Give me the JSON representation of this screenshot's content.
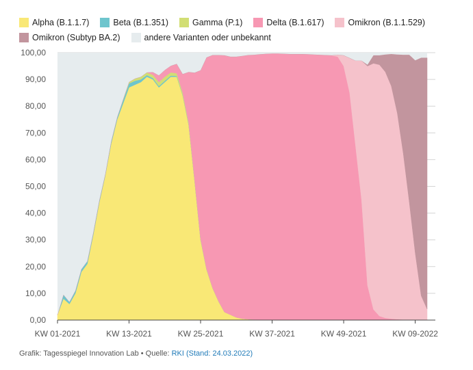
{
  "chart_data": {
    "type": "area",
    "stacked": true,
    "x": [
      "KW 01-2021",
      "KW 02-2021",
      "KW 03-2021",
      "KW 04-2021",
      "KW 05-2021",
      "KW 06-2021",
      "KW 07-2021",
      "KW 08-2021",
      "KW 09-2021",
      "KW 10-2021",
      "KW 11-2021",
      "KW 12-2021",
      "KW 13-2021",
      "KW 14-2021",
      "KW 15-2021",
      "KW 16-2021",
      "KW 17-2021",
      "KW 18-2021",
      "KW 19-2021",
      "KW 20-2021",
      "KW 21-2021",
      "KW 22-2021",
      "KW 23-2021",
      "KW 24-2021",
      "KW 25-2021",
      "KW 26-2021",
      "KW 27-2021",
      "KW 28-2021",
      "KW 29-2021",
      "KW 30-2021",
      "KW 31-2021",
      "KW 32-2021",
      "KW 33-2021",
      "KW 34-2021",
      "KW 35-2021",
      "KW 36-2021",
      "KW 37-2021",
      "KW 38-2021",
      "KW 39-2021",
      "KW 40-2021",
      "KW 41-2021",
      "KW 42-2021",
      "KW 43-2021",
      "KW 44-2021",
      "KW 45-2021",
      "KW 46-2021",
      "KW 47-2021",
      "KW 48-2021",
      "KW 49-2021",
      "KW 50-2021",
      "KW 51-2021",
      "KW 52-2021",
      "KW 01-2022",
      "KW 02-2022",
      "KW 03-2022",
      "KW 04-2022",
      "KW 05-2022",
      "KW 06-2022",
      "KW 07-2022",
      "KW 08-2022",
      "KW 09-2022",
      "KW 10-2022",
      "KW 11-2022"
    ],
    "xticks": [
      "KW 01-2021",
      "KW 13-2021",
      "KW 25-2021",
      "KW 37-2021",
      "KW 49-2021",
      "KW 09-2022"
    ],
    "yticks": [
      "0,00",
      "10,00",
      "20,00",
      "30,00",
      "40,00",
      "50,00",
      "60,00",
      "70,00",
      "80,00",
      "90,00",
      "100,00"
    ],
    "ylim": [
      0,
      100
    ],
    "grid": "horizontal",
    "legend_position": "top-left",
    "series": [
      {
        "name": "Alpha (B.1.1.7)",
        "color": "#f9e876",
        "values": [
          2,
          8,
          6,
          10,
          18,
          21,
          32,
          44,
          54,
          66,
          75,
          81,
          87,
          88,
          89,
          91,
          90,
          87,
          89,
          91,
          91,
          84,
          73,
          52,
          30,
          19,
          12,
          7,
          3,
          2,
          1,
          0.5,
          0.3,
          0.2,
          0.1,
          0.1,
          0.1,
          0.1,
          0.1,
          0,
          0,
          0,
          0,
          0,
          0,
          0,
          0,
          0,
          0,
          0,
          0,
          0,
          0,
          0,
          0,
          0,
          0,
          0,
          0,
          0,
          0,
          0,
          0
        ]
      },
      {
        "name": "Beta (B.1.351)",
        "color": "#6ec5cd",
        "values": [
          0,
          1.5,
          0.8,
          1,
          1,
          1,
          0.8,
          0.7,
          0.5,
          0.8,
          0.8,
          1.2,
          1.5,
          1.5,
          1,
          0.6,
          0.5,
          0.5,
          0.5,
          0.4,
          0.3,
          0.2,
          0.2,
          0.1,
          0.1,
          0,
          0,
          0,
          0,
          0,
          0,
          0,
          0,
          0,
          0,
          0,
          0,
          0,
          0,
          0,
          0,
          0,
          0,
          0,
          0,
          0,
          0,
          0,
          0,
          0,
          0,
          0,
          0,
          0,
          0,
          0,
          0,
          0,
          0,
          0,
          0,
          0,
          0
        ]
      },
      {
        "name": "Gamma (P.1)",
        "color": "#d2de74",
        "values": [
          0,
          0,
          0,
          0,
          0,
          0,
          0,
          0,
          0,
          0,
          0,
          0.3,
          0.5,
          0.8,
          1,
          1,
          1.2,
          1.5,
          1.5,
          1.2,
          1,
          0.8,
          0.6,
          0.4,
          0.3,
          0.2,
          0.1,
          0.1,
          0,
          0,
          0,
          0,
          0,
          0,
          0,
          0,
          0,
          0,
          0,
          0,
          0,
          0,
          0,
          0,
          0,
          0,
          0,
          0,
          0,
          0,
          0,
          0,
          0,
          0,
          0,
          0,
          0,
          0,
          0,
          0,
          0,
          0,
          0
        ]
      },
      {
        "name": "Delta (B.1.617)",
        "color": "#f798b3",
        "values": [
          0,
          0,
          0,
          0,
          0,
          0,
          0,
          0,
          0,
          0,
          0,
          0,
          0,
          0,
          0,
          0,
          1,
          2.5,
          2.5,
          2.5,
          3.5,
          7,
          19,
          40,
          63,
          79,
          87,
          92,
          96,
          96.5,
          97.5,
          98.3,
          98.8,
          99,
          99.3,
          99.5,
          99.6,
          99.6,
          99.5,
          99.5,
          99.5,
          99.5,
          99.4,
          99.3,
          99.2,
          99.1,
          99,
          98.5,
          95,
          85,
          65,
          45,
          13,
          4,
          1.5,
          0.8,
          0.5,
          0.3,
          0.2,
          0.2,
          0.1,
          0.1,
          0.1
        ]
      },
      {
        "name": "Omikron (B.1.1.529)",
        "color": "#f5c2cb",
        "values": [
          0,
          0,
          0,
          0,
          0,
          0,
          0,
          0,
          0,
          0,
          0,
          0,
          0,
          0,
          0,
          0,
          0,
          0,
          0,
          0,
          0,
          0,
          0,
          0,
          0,
          0,
          0,
          0,
          0,
          0,
          0,
          0,
          0,
          0,
          0,
          0,
          0,
          0,
          0,
          0,
          0,
          0,
          0,
          0,
          0,
          0,
          0,
          0.7,
          4,
          13,
          32,
          52,
          82,
          92,
          94,
          92,
          87,
          77,
          62,
          44,
          25,
          9,
          4
        ]
      },
      {
        "name": "Omikron (Subtyp BA.2)",
        "color": "#c2959e",
        "values": [
          0,
          0,
          0,
          0,
          0,
          0,
          0,
          0,
          0,
          0,
          0,
          0,
          0,
          0,
          0,
          0,
          0,
          0,
          0,
          0,
          0,
          0,
          0,
          0,
          0,
          0,
          0,
          0,
          0,
          0,
          0,
          0,
          0,
          0,
          0,
          0,
          0,
          0,
          0,
          0,
          0,
          0,
          0,
          0,
          0,
          0,
          0,
          0,
          0,
          0,
          0,
          0,
          0.5,
          3,
          3.5,
          6.5,
          12,
          22,
          37,
          55,
          72,
          89,
          94
        ]
      },
      {
        "name": "andere Varianten oder unbekannt",
        "color": "#e6ecee",
        "values": "remainder"
      }
    ]
  },
  "legend": {
    "row1": [
      {
        "label": "Alpha (B.1.1.7)",
        "color": "#f9e876"
      },
      {
        "label": "Beta (B.1.351)",
        "color": "#6ec5cd"
      },
      {
        "label": "Gamma (P.1)",
        "color": "#d2de74"
      },
      {
        "label": "Delta (B.1.617)",
        "color": "#f798b3"
      },
      {
        "label": "Omikron (B.1.1.529)",
        "color": "#f5c2cb"
      }
    ],
    "row2": [
      {
        "label": "Omikron (Subtyp BA.2)",
        "color": "#c2959e"
      },
      {
        "label": "andere Varianten oder unbekannt",
        "color": "#e6ecee"
      }
    ]
  },
  "footer": {
    "text": "Grafik: Tagesspiegel Innovation Lab • Quelle: ",
    "link": "RKI (Stand: 24.03.2022)",
    "link_color": "#1f7ab8"
  }
}
